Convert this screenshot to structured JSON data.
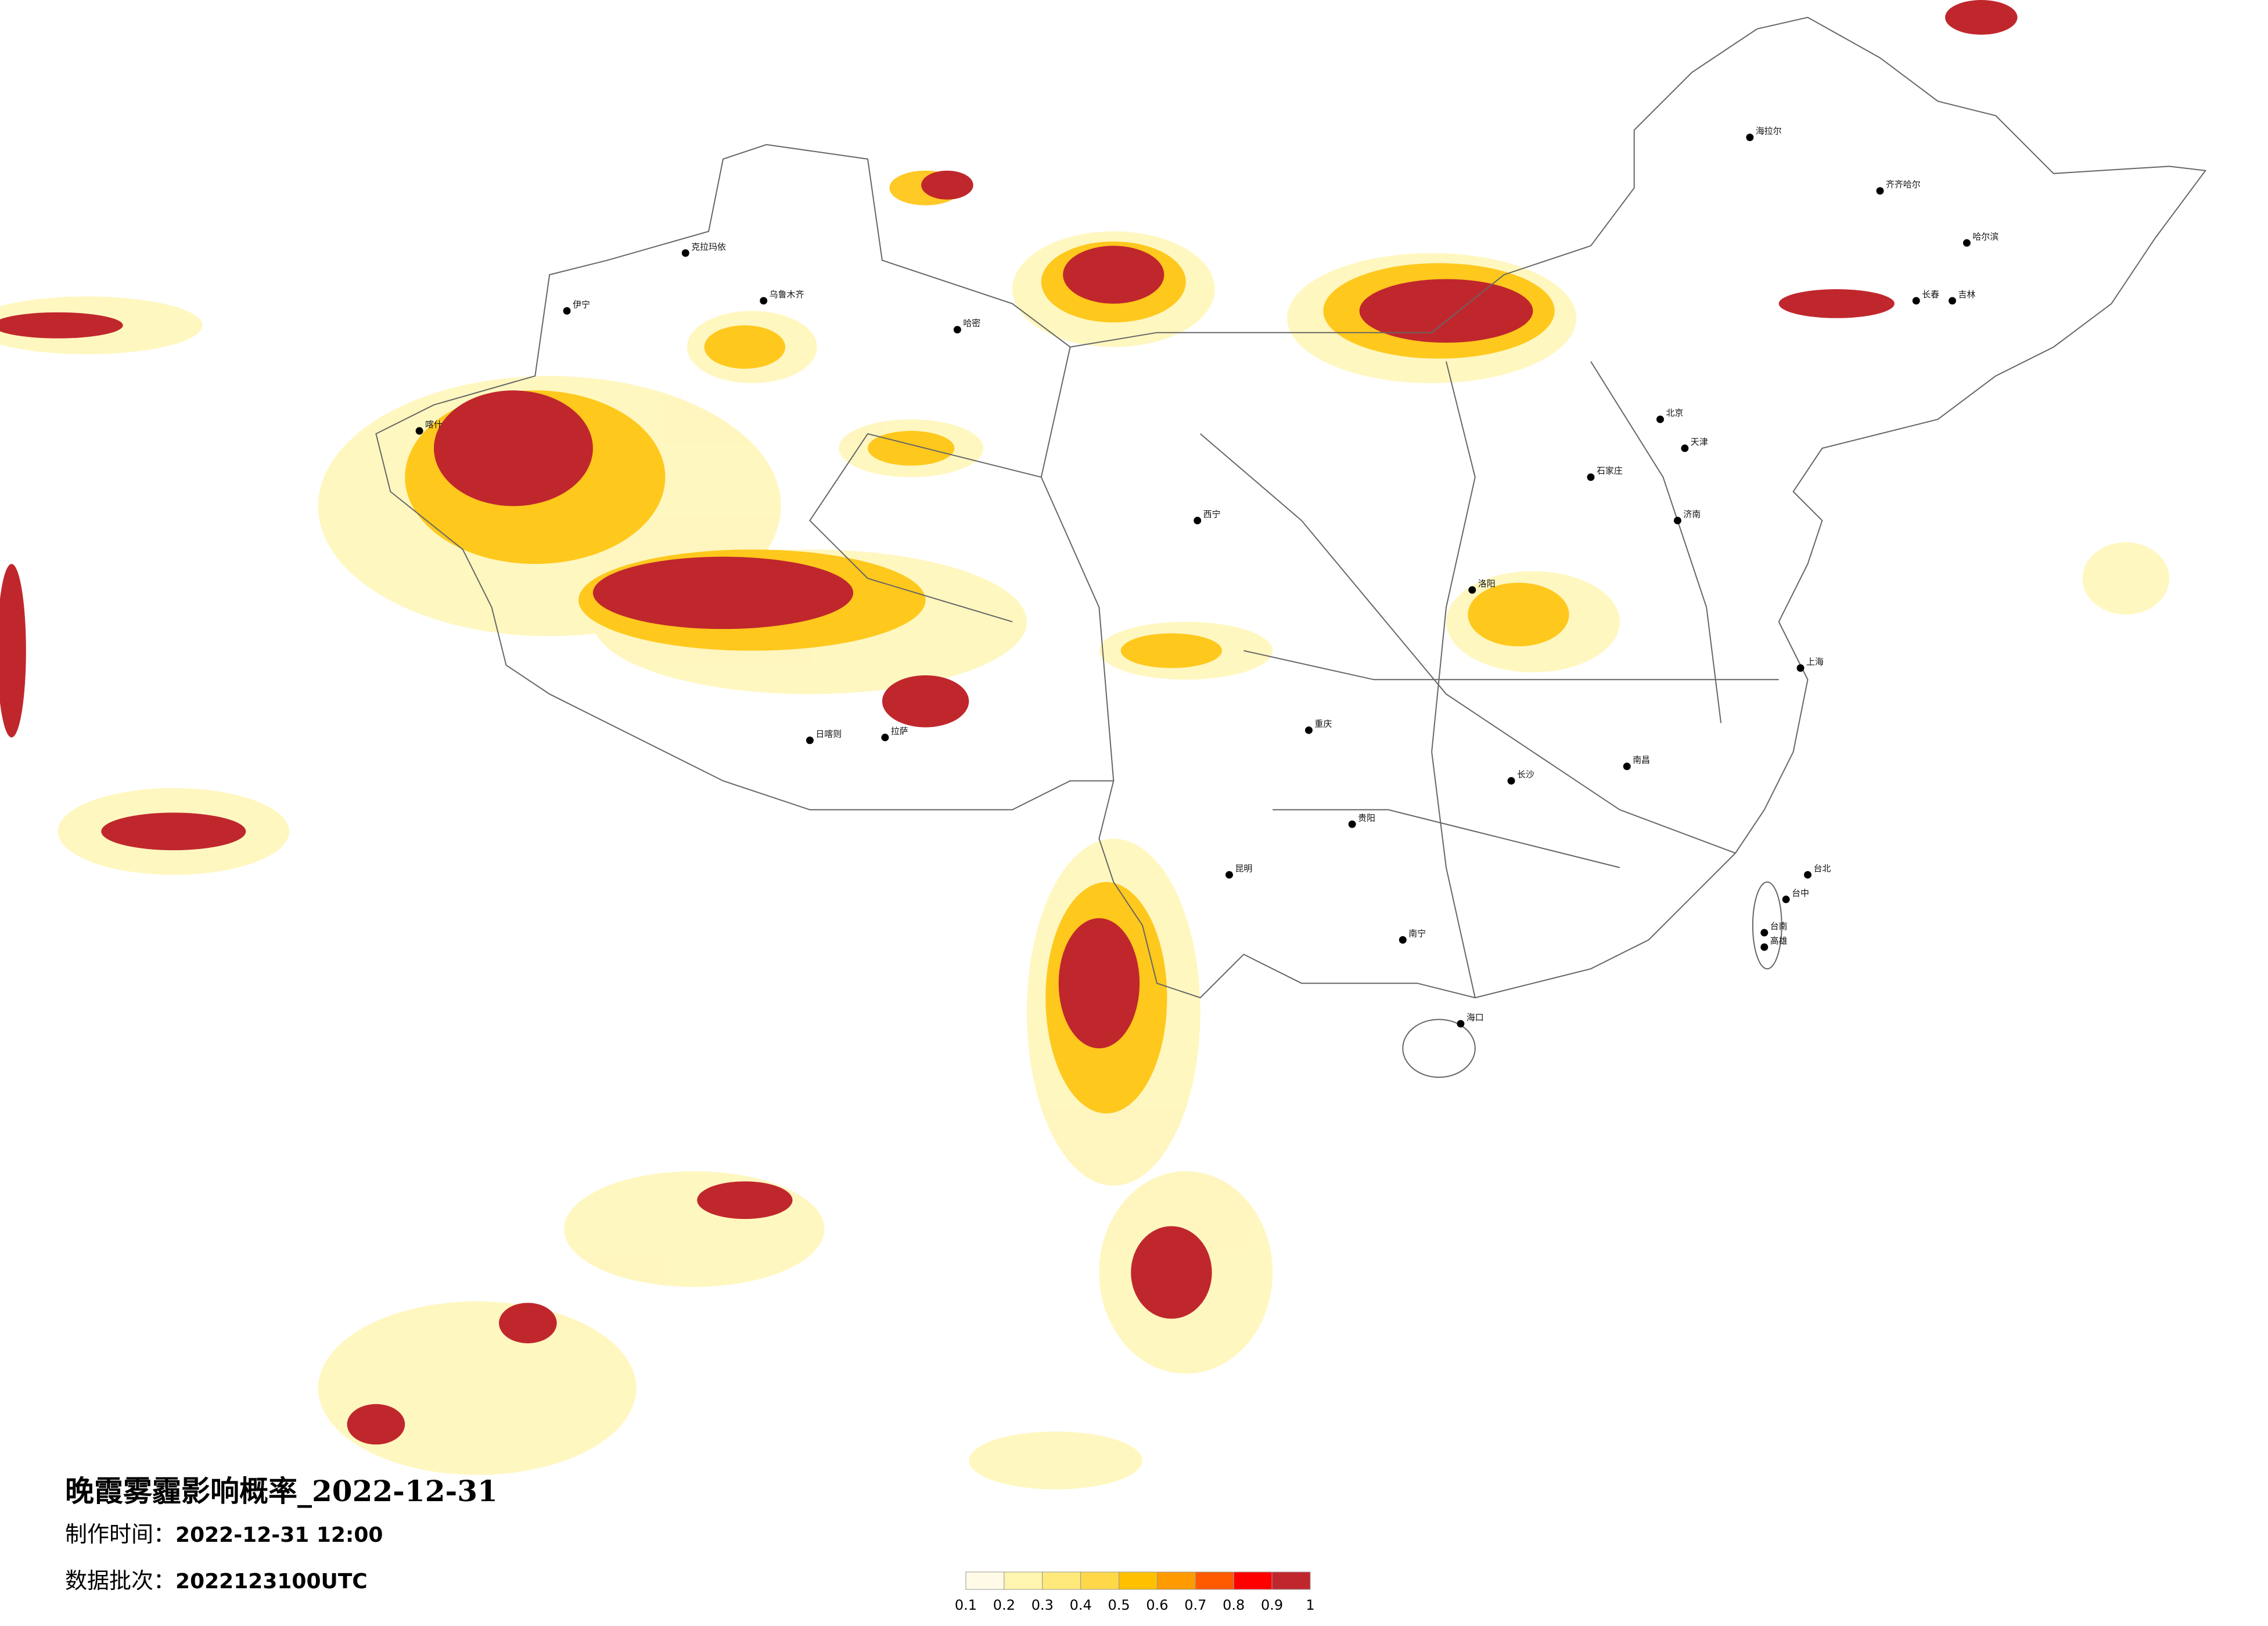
{
  "title": "晚霞雾霾影响概率_2022-12-31",
  "issue_time": {
    "label": "制作时间：",
    "value": "2022-12-31 12:00"
  },
  "batch": {
    "label": "数据批次：",
    "value": "2022123100UTC"
  },
  "colorbar": {
    "ticks": [
      0.1,
      0.2,
      0.3,
      0.4,
      0.5,
      0.6,
      0.7,
      0.8,
      0.9,
      1
    ],
    "colors": [
      "#fffbe6",
      "#fff5b0",
      "#ffe97a",
      "#ffd84a",
      "#ffc000",
      "#ff9a00",
      "#ff5a00",
      "#ff0000",
      "#c0272d"
    ]
  },
  "cities": [
    "乌鲁木齐",
    "克拉玛依",
    "伊宁",
    "哈密",
    "喀什",
    "拉萨",
    "日喀则",
    "西宁",
    "海拉尔",
    "齐齐哈尔",
    "哈尔滨",
    "长春",
    "吉林",
    "北京",
    "天津",
    "石家庄",
    "济南",
    "洛阳",
    "上海",
    "重庆",
    "贵阳",
    "昆明",
    "长沙",
    "南昌",
    "南宁",
    "海口",
    "台北",
    "台中",
    "台南",
    "高雄"
  ]
}
